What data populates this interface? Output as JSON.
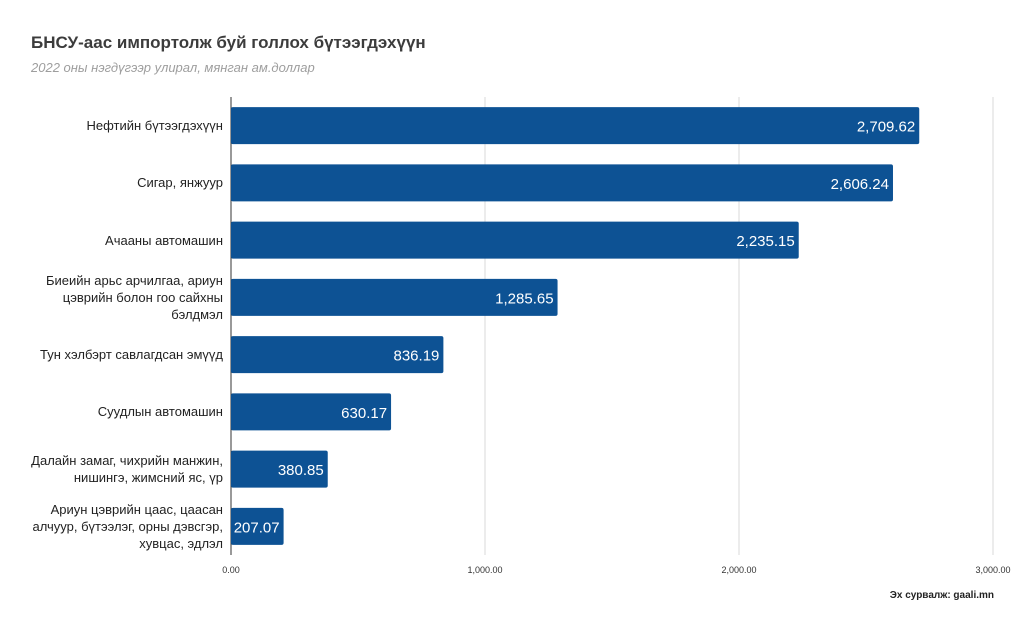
{
  "chart_data": {
    "type": "bar",
    "orientation": "horizontal",
    "title": "БНСУ-аас импортолж буй голлох бүтээгдэхүүн",
    "subtitle": "2022 оны нэгдүгээр улирал, мянган ам.доллар",
    "categories": [
      "Нефтийн бүтээгдэхүүн",
      "Сигар, янжуур",
      "Ачааны автомашин",
      "Биеийн арьс арчилгаа, ариун цэврийн болон гоо сайхны бэлдмэл",
      "Тун хэлбэрт савлагдсан эмүүд",
      "Суудлын автомашин",
      "Далайн замаг, чихрийн манжин, нишингэ, жимсний яс, үр",
      "Ариун цэврийн цаас, цаасан алчуур, бүтээлэг, орны дэвсгэр, хувцас, эдлэл"
    ],
    "values": [
      2709.62,
      2606.24,
      2235.15,
      1285.65,
      836.19,
      630.17,
      380.85,
      207.07
    ],
    "value_labels": [
      "2,709.62",
      "2,606.24",
      "2,235.15",
      "1,285.65",
      "836.19",
      "630.17",
      "380.85",
      "207.07"
    ],
    "xlim": [
      0,
      3000
    ],
    "x_ticks": [
      0,
      1000,
      2000,
      3000
    ],
    "x_tick_labels": [
      "0.00",
      "1,000.00",
      "2,000.00",
      "3,000.00"
    ],
    "grid": true,
    "bar_color": "#0d5294",
    "source": "Эх сурвалж: gaali.mn"
  }
}
